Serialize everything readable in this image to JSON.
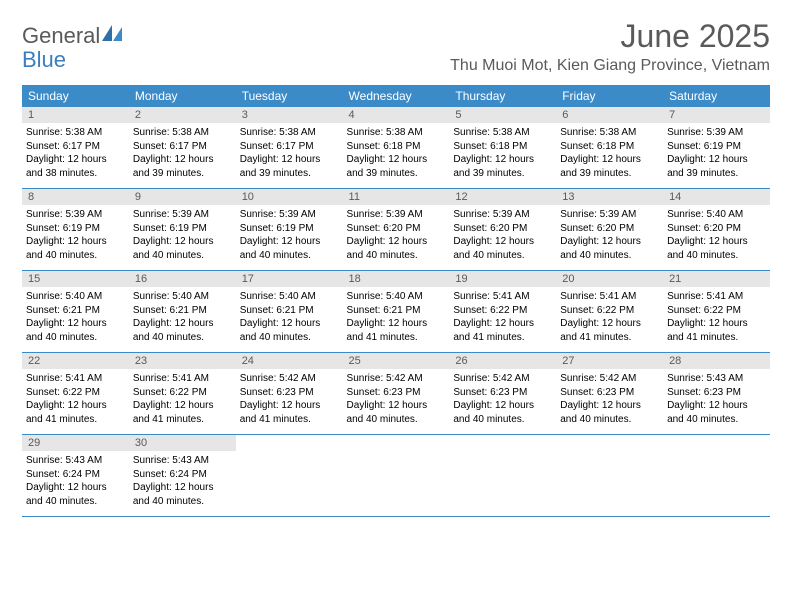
{
  "logo": {
    "text1": "General",
    "text2": "Blue"
  },
  "title": "June 2025",
  "location": "Thu Muoi Mot, Kien Giang Province, Vietnam",
  "colors": {
    "header_bg": "#3b8bc9",
    "header_text": "#ffffff",
    "daynum_bg": "#e6e6e6",
    "daynum_text": "#5a5a5a",
    "border": "#3b8bc9",
    "body_text": "#000000",
    "title_text": "#5a5a5a",
    "logo_gray": "#5a5a5a",
    "logo_blue": "#3b7fbf"
  },
  "weekdays": [
    "Sunday",
    "Monday",
    "Tuesday",
    "Wednesday",
    "Thursday",
    "Friday",
    "Saturday"
  ],
  "days": [
    {
      "n": "1",
      "sunrise": "5:38 AM",
      "sunset": "6:17 PM",
      "daylight": "12 hours and 38 minutes."
    },
    {
      "n": "2",
      "sunrise": "5:38 AM",
      "sunset": "6:17 PM",
      "daylight": "12 hours and 39 minutes."
    },
    {
      "n": "3",
      "sunrise": "5:38 AM",
      "sunset": "6:17 PM",
      "daylight": "12 hours and 39 minutes."
    },
    {
      "n": "4",
      "sunrise": "5:38 AM",
      "sunset": "6:18 PM",
      "daylight": "12 hours and 39 minutes."
    },
    {
      "n": "5",
      "sunrise": "5:38 AM",
      "sunset": "6:18 PM",
      "daylight": "12 hours and 39 minutes."
    },
    {
      "n": "6",
      "sunrise": "5:38 AM",
      "sunset": "6:18 PM",
      "daylight": "12 hours and 39 minutes."
    },
    {
      "n": "7",
      "sunrise": "5:39 AM",
      "sunset": "6:19 PM",
      "daylight": "12 hours and 39 minutes."
    },
    {
      "n": "8",
      "sunrise": "5:39 AM",
      "sunset": "6:19 PM",
      "daylight": "12 hours and 40 minutes."
    },
    {
      "n": "9",
      "sunrise": "5:39 AM",
      "sunset": "6:19 PM",
      "daylight": "12 hours and 40 minutes."
    },
    {
      "n": "10",
      "sunrise": "5:39 AM",
      "sunset": "6:19 PM",
      "daylight": "12 hours and 40 minutes."
    },
    {
      "n": "11",
      "sunrise": "5:39 AM",
      "sunset": "6:20 PM",
      "daylight": "12 hours and 40 minutes."
    },
    {
      "n": "12",
      "sunrise": "5:39 AM",
      "sunset": "6:20 PM",
      "daylight": "12 hours and 40 minutes."
    },
    {
      "n": "13",
      "sunrise": "5:39 AM",
      "sunset": "6:20 PM",
      "daylight": "12 hours and 40 minutes."
    },
    {
      "n": "14",
      "sunrise": "5:40 AM",
      "sunset": "6:20 PM",
      "daylight": "12 hours and 40 minutes."
    },
    {
      "n": "15",
      "sunrise": "5:40 AM",
      "sunset": "6:21 PM",
      "daylight": "12 hours and 40 minutes."
    },
    {
      "n": "16",
      "sunrise": "5:40 AM",
      "sunset": "6:21 PM",
      "daylight": "12 hours and 40 minutes."
    },
    {
      "n": "17",
      "sunrise": "5:40 AM",
      "sunset": "6:21 PM",
      "daylight": "12 hours and 40 minutes."
    },
    {
      "n": "18",
      "sunrise": "5:40 AM",
      "sunset": "6:21 PM",
      "daylight": "12 hours and 41 minutes."
    },
    {
      "n": "19",
      "sunrise": "5:41 AM",
      "sunset": "6:22 PM",
      "daylight": "12 hours and 41 minutes."
    },
    {
      "n": "20",
      "sunrise": "5:41 AM",
      "sunset": "6:22 PM",
      "daylight": "12 hours and 41 minutes."
    },
    {
      "n": "21",
      "sunrise": "5:41 AM",
      "sunset": "6:22 PM",
      "daylight": "12 hours and 41 minutes."
    },
    {
      "n": "22",
      "sunrise": "5:41 AM",
      "sunset": "6:22 PM",
      "daylight": "12 hours and 41 minutes."
    },
    {
      "n": "23",
      "sunrise": "5:41 AM",
      "sunset": "6:22 PM",
      "daylight": "12 hours and 41 minutes."
    },
    {
      "n": "24",
      "sunrise": "5:42 AM",
      "sunset": "6:23 PM",
      "daylight": "12 hours and 41 minutes."
    },
    {
      "n": "25",
      "sunrise": "5:42 AM",
      "sunset": "6:23 PM",
      "daylight": "12 hours and 40 minutes."
    },
    {
      "n": "26",
      "sunrise": "5:42 AM",
      "sunset": "6:23 PM",
      "daylight": "12 hours and 40 minutes."
    },
    {
      "n": "27",
      "sunrise": "5:42 AM",
      "sunset": "6:23 PM",
      "daylight": "12 hours and 40 minutes."
    },
    {
      "n": "28",
      "sunrise": "5:43 AM",
      "sunset": "6:23 PM",
      "daylight": "12 hours and 40 minutes."
    },
    {
      "n": "29",
      "sunrise": "5:43 AM",
      "sunset": "6:24 PM",
      "daylight": "12 hours and 40 minutes."
    },
    {
      "n": "30",
      "sunrise": "5:43 AM",
      "sunset": "6:24 PM",
      "daylight": "12 hours and 40 minutes."
    }
  ],
  "labels": {
    "sunrise": "Sunrise:",
    "sunset": "Sunset:",
    "daylight": "Daylight:"
  },
  "layout": {
    "first_day_column": 0,
    "total_cells": 35
  }
}
